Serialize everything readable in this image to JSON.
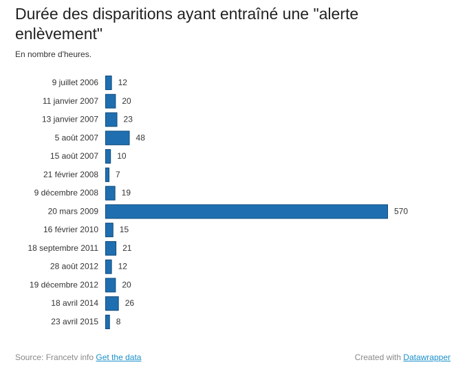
{
  "chart_data": {
    "type": "bar",
    "orientation": "horizontal",
    "title": "Durée des disparitions ayant entraîné une \"alerte enlèvement\"",
    "subtitle": "En nombre d'heures.",
    "categories": [
      "9 juillet 2006",
      "11 janvier 2007",
      "13 janvier 2007",
      "5 août 2007",
      "15 août 2007",
      "21 février 2008",
      "9 décembre 2008",
      "20 mars 2009",
      "16 février 2010",
      "18 septembre 2011",
      "28 août 2012",
      "19 décembre 2012",
      "18 avril 2014",
      "23 avril 2015"
    ],
    "values": [
      12,
      20,
      23,
      48,
      10,
      7,
      19,
      570,
      15,
      21,
      12,
      20,
      26,
      8
    ],
    "xlim": [
      0,
      570
    ],
    "grid": false,
    "colors": {
      "bar": "#1f6fb0",
      "bar_stroke": "#0e4a7d"
    }
  },
  "footer": {
    "source_prefix": "Source: Francetv info",
    "get_data_link": "Get the data",
    "created_prefix": "Created with",
    "datawrapper_link": "Datawrapper"
  }
}
